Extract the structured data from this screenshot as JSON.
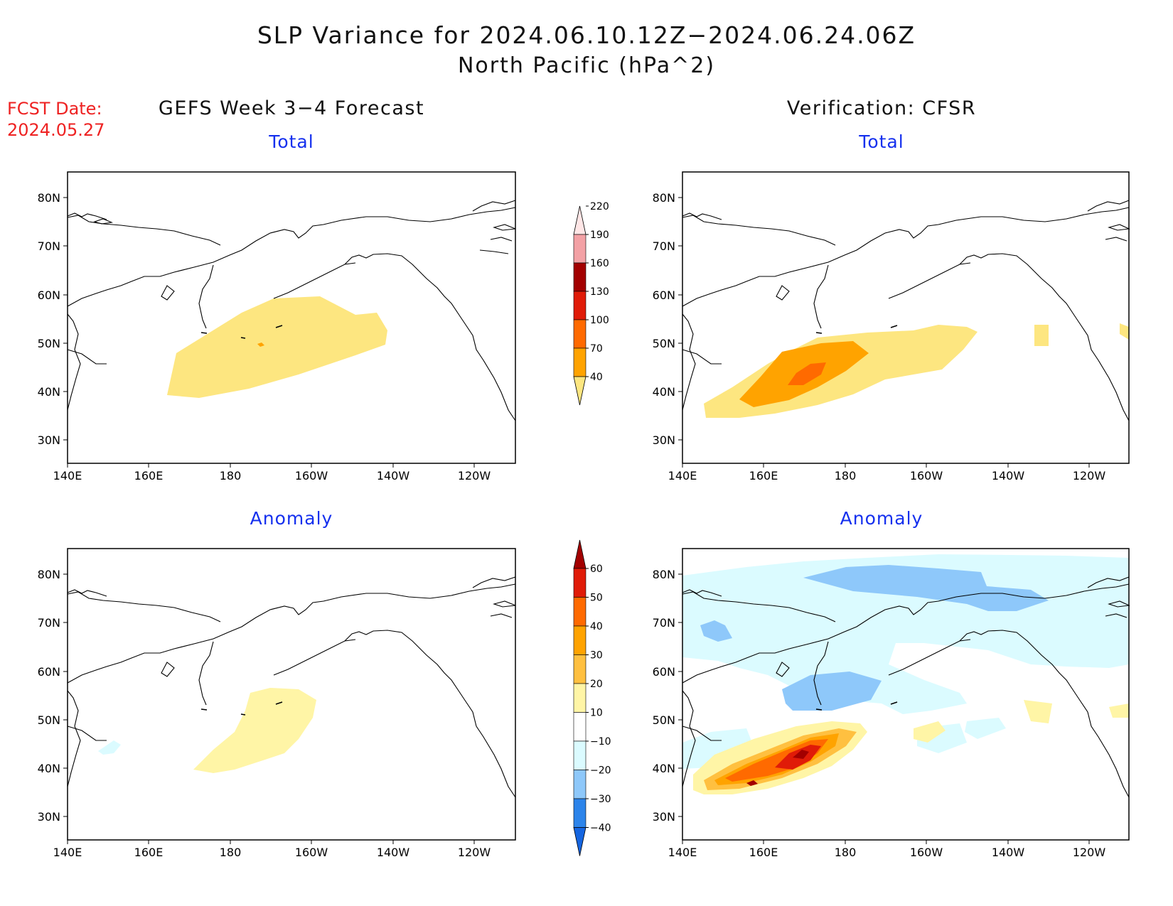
{
  "title": "SLP Variance for 2024.06.10.12Z−2024.06.24.06Z",
  "subtitle": "North Pacific (hPa^2)",
  "forecast_date_label": "FCST Date:",
  "forecast_date": "2024.05.27",
  "columns": {
    "forecast": "GEFS Week 3−4 Forecast",
    "verification": "Verification: CFSR"
  },
  "panels": {
    "total": "Total",
    "anomaly": "Anomaly"
  },
  "axes": {
    "lat_labels": [
      "80N",
      "70N",
      "60N",
      "50N",
      "40N",
      "30N"
    ],
    "lon_labels": [
      "140E",
      "160E",
      "180",
      "160W",
      "140W",
      "120W"
    ]
  },
  "colorbars": {
    "total": {
      "levels": [
        "40",
        "70",
        "100",
        "130",
        "160",
        "190",
        "220"
      ],
      "colors": [
        "#fde680",
        "#ffa300",
        "#ff6a00",
        "#e01b08",
        "#a30000",
        "#f3a1a5",
        "#ffe6e6"
      ]
    },
    "anomaly": {
      "levels": [
        "−40",
        "−30",
        "−20",
        "−10",
        "10",
        "20",
        "30",
        "40",
        "50",
        "60"
      ],
      "colors": [
        "#1565e0",
        "#2c84ea",
        "#8ec8fa",
        "#dbfbff",
        "#ffffff",
        "#fff5a6",
        "#ffc040",
        "#ffa300",
        "#ff6a00",
        "#e01b08",
        "#a30000"
      ]
    }
  }
}
